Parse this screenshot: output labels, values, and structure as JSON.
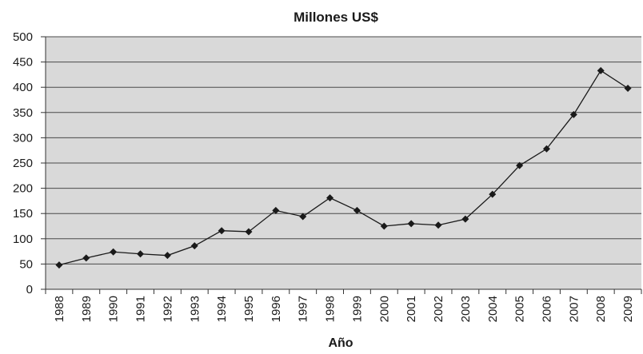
{
  "chart_data": {
    "type": "line",
    "title": "Millones US$",
    "xlabel": "Año",
    "ylabel": "",
    "ylim": [
      0,
      500
    ],
    "yticks": [
      0,
      50,
      100,
      150,
      200,
      250,
      300,
      350,
      400,
      450,
      500
    ],
    "grid": true,
    "legend": "none",
    "categories": [
      "1988",
      "1989",
      "1990",
      "1991",
      "1992",
      "1993",
      "1994",
      "1995",
      "1996",
      "1997",
      "1998",
      "1999",
      "2000",
      "2001",
      "2002",
      "2003",
      "2004",
      "2005",
      "2006",
      "2007",
      "2008",
      "2009"
    ],
    "series": [
      {
        "values": [
          48,
          62,
          74,
          70,
          67,
          86,
          116,
          114,
          156,
          144,
          181,
          156,
          125,
          130,
          127,
          139,
          188,
          245,
          278,
          346,
          433,
          398
        ]
      }
    ],
    "colors": {
      "plot_background": "#d9d9d9",
      "gridline": "#4a4a4a",
      "line": "#1a1a1a",
      "marker": "#1a1a1a"
    }
  }
}
